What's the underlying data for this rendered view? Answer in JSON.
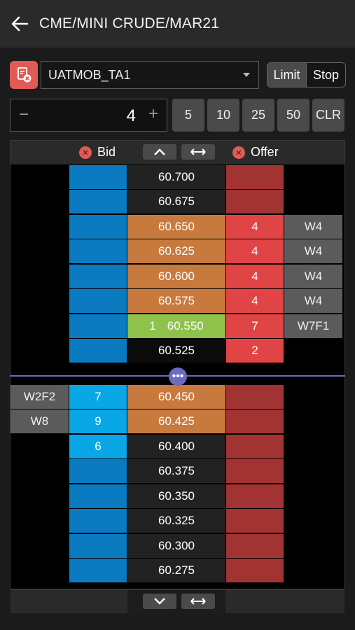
{
  "header": {
    "title": "CME/MINI CRUDE/MAR21"
  },
  "account": {
    "selected": "UATMOB_TA1"
  },
  "order_type": {
    "limit_label": "Limit",
    "stop_label": "Stop"
  },
  "quantity": {
    "minus": "−",
    "value": "4",
    "plus": "+"
  },
  "quick_qty": [
    "5",
    "10",
    "25",
    "50",
    "CLR"
  ],
  "ladder_header": {
    "bid_label": "Bid",
    "offer_label": "Offer"
  },
  "rows_top": [
    {
      "price": "60.700",
      "bid_qty": "",
      "offer_qty": "",
      "right": "",
      "price_style": "plain"
    },
    {
      "price": "60.675",
      "bid_qty": "",
      "offer_qty": "",
      "right": "",
      "price_style": "plain"
    },
    {
      "price": "60.650",
      "bid_qty": "",
      "offer_qty": "4",
      "right": "W4",
      "price_style": "orange"
    },
    {
      "price": "60.625",
      "bid_qty": "",
      "offer_qty": "4",
      "right": "W4",
      "price_style": "orange"
    },
    {
      "price": "60.600",
      "bid_qty": "",
      "offer_qty": "4",
      "right": "W4",
      "price_style": "orange"
    },
    {
      "price": "60.575",
      "bid_qty": "",
      "offer_qty": "4",
      "right": "W4",
      "price_style": "orange"
    },
    {
      "price": "60.550",
      "price_prefix": "1",
      "bid_qty": "",
      "offer_qty": "7",
      "right": "W7F1",
      "price_style": "green"
    },
    {
      "price": "60.525",
      "bid_qty": "",
      "offer_qty": "2",
      "right": "",
      "price_style": "black"
    }
  ],
  "rows_bottom": [
    {
      "left": "W2F2",
      "bid_qty": "7",
      "price": "60.450",
      "price_style": "orange"
    },
    {
      "left": "W8",
      "bid_qty": "9",
      "price": "60.425",
      "price_style": "orange"
    },
    {
      "left": "",
      "bid_qty": "6",
      "price": "60.400",
      "price_style": "plain"
    },
    {
      "left": "",
      "bid_qty": "",
      "price": "60.375",
      "price_style": "plain"
    },
    {
      "left": "",
      "bid_qty": "",
      "price": "60.350",
      "price_style": "plain"
    },
    {
      "left": "",
      "bid_qty": "",
      "price": "60.325",
      "price_style": "plain"
    },
    {
      "left": "",
      "bid_qty": "",
      "price": "60.300",
      "price_style": "plain"
    },
    {
      "left": "",
      "bid_qty": "",
      "price": "60.275",
      "price_style": "plain"
    }
  ],
  "divider_glyph": "•••",
  "colors": {
    "bid": "#0a7bc0",
    "offer": "#a23333",
    "working": "#c87a3e",
    "last": "#8ec24b",
    "accent": "#6b6bc0"
  }
}
